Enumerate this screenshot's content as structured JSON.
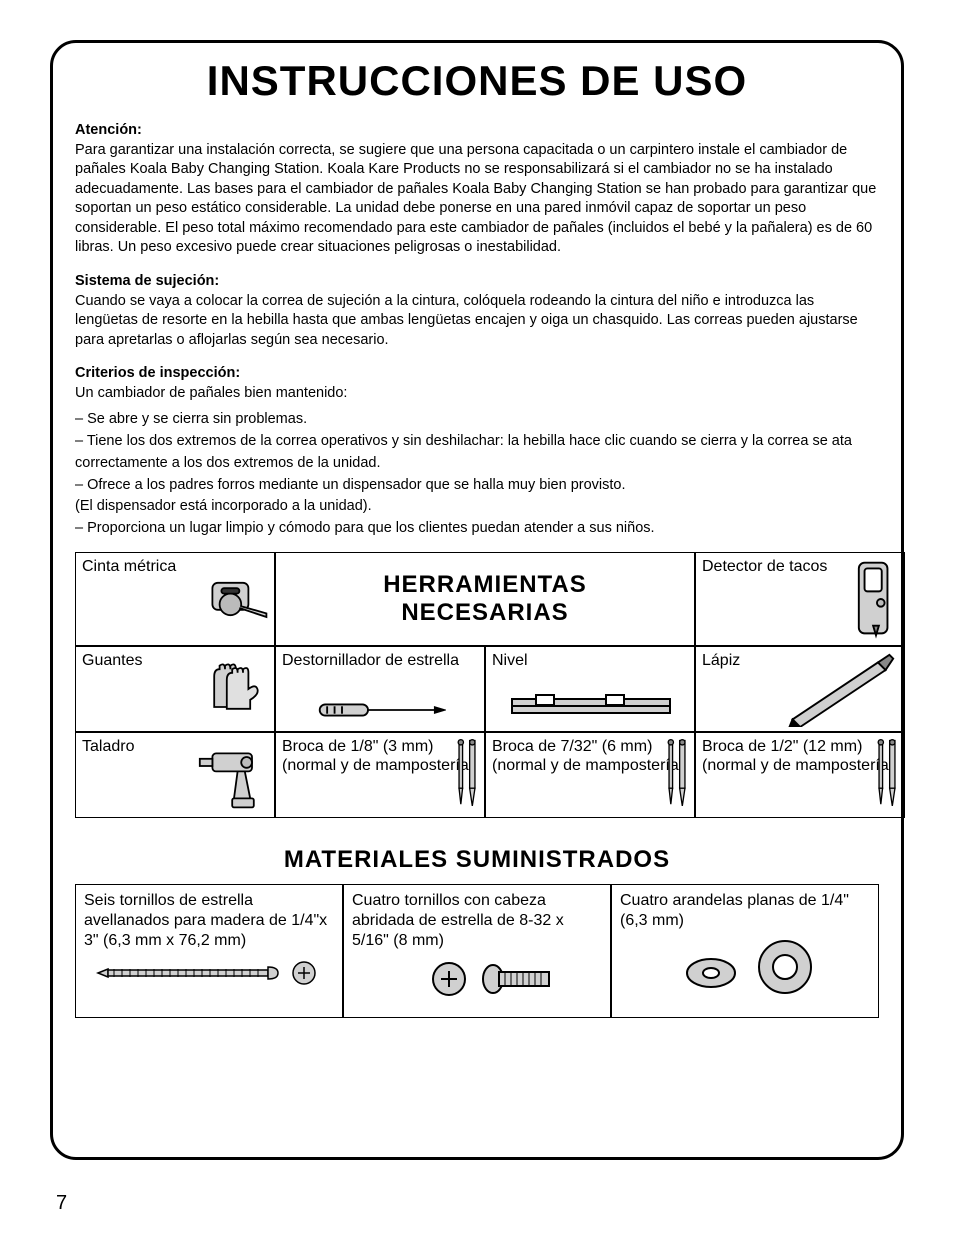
{
  "page_number": "7",
  "title": "INSTRUCCIONES DE USO",
  "sections": {
    "atencion": {
      "label": "Atención:",
      "text": "Para garantizar una instalación correcta, se sugiere que una persona capacitada o un carpintero instale el cambiador de pañales Koala Baby Changing Station. Koala Kare Products no se responsabilizará si el cambiador no se ha instalado adecuadamente. Las bases para el cambiador de pañales Koala Baby Changing Station se han probado para garantizar que soportan un peso estático considerable. La unidad debe ponerse en una pared inmóvil capaz de soportar un peso considerable. El peso total máximo recomendado para este cambiador de pañales (incluidos el bebé y la pañalera) es de 60 libras. Un peso excesivo puede crear situaciones peligrosas o inestabilidad."
    },
    "sujecion": {
      "label": "Sistema de sujeción:",
      "text": "Cuando se vaya a colocar la correa de sujeción a la cintura, colóquela rodeando la cintura del niño e introduzca las lengüetas de resorte en la hebilla hasta que ambas lengüetas encajen y oiga un chasquido. Las correas pueden ajustarse para apretarlas o aflojarlas según sea necesario."
    },
    "criterios": {
      "label": "Criterios de inspección:",
      "intro": "Un cambiador de pañales bien mantenido:",
      "items": [
        "– Se abre y se cierra sin problemas.",
        "– Tiene los dos extremos de la correa operativos y sin deshilachar: la hebilla hace clic cuando se cierra y la correa se ata correctamente a los dos extremos de la unidad.",
        "– Ofrece a los padres forros mediante un dispensador que se halla muy bien provisto.",
        "(El dispensador está incorporado a la unidad).",
        "– Proporciona un lugar limpio y cómodo para que los clientes puedan atender a sus niños."
      ]
    }
  },
  "tools_title": "HERRAMIENTAS NECESARIAS",
  "tools": {
    "r1c1": "Cinta métrica",
    "r1c4": "Detector de tacos",
    "r2c1": "Guantes",
    "r2c2": "Destornillador de estrella",
    "r2c3": "Nivel",
    "r2c4": "Lápiz",
    "r3c1": "Taladro",
    "r3c2": "Broca de 1/8\" (3 mm) (normal y de mampostería)",
    "r3c3": "Broca de 7/32\" (6 mm) (normal y de mampostería)",
    "r3c4": "Broca de 1/2\" (12 mm) (normal y de mampostería)"
  },
  "materials_title": "MATERIALES SUMINISTRADOS",
  "materials": {
    "m1": "Seis tornillos de estrella avellanados para madera de 1/4\"x 3\" (6,3 mm x 76,2 mm)",
    "m2": "Cuatro tornillos con cabeza abridada de estrella de 8-32 x 5/16\" (8 mm)",
    "m3": "Cuatro arandelas planas de 1/4\" (6,3 mm)"
  },
  "colors": {
    "text": "#000000",
    "bg": "#ffffff",
    "icon_fill": "#d0d0d0",
    "icon_stroke": "#000000"
  }
}
